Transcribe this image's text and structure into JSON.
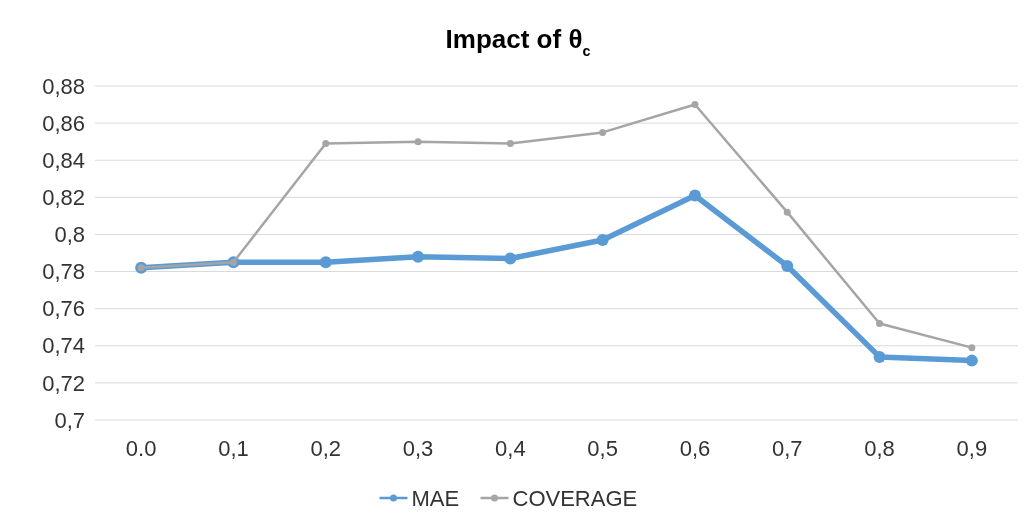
{
  "chart_data": {
    "type": "line",
    "title": "Impact of θ$_{c}$",
    "categories": [
      "0.0",
      "0,1",
      "0,2",
      "0,3",
      "0,4",
      "0,5",
      "0,6",
      "0,7",
      "0,8",
      "0,9"
    ],
    "series": [
      {
        "name": "MAE",
        "color": "#5b9bd5",
        "values": [
          0.782,
          0.785,
          0.785,
          0.788,
          0.787,
          0.797,
          0.821,
          0.783,
          0.734,
          0.732
        ]
      },
      {
        "name": "COVERAGE",
        "color": "#a5a5a5",
        "values": [
          0.782,
          0.785,
          0.849,
          0.85,
          0.849,
          0.855,
          0.87,
          0.812,
          0.752,
          0.739
        ]
      }
    ],
    "ylim": [
      0.7,
      0.88
    ],
    "yticks": [
      {
        "value": 0.7,
        "label": "0,7"
      },
      {
        "value": 0.72,
        "label": "0,72"
      },
      {
        "value": 0.74,
        "label": "0,74"
      },
      {
        "value": 0.76,
        "label": "0,76"
      },
      {
        "value": 0.78,
        "label": "0,78"
      },
      {
        "value": 0.8,
        "label": "0,8"
      },
      {
        "value": 0.82,
        "label": "0,82"
      },
      {
        "value": 0.84,
        "label": "0,84"
      },
      {
        "value": 0.86,
        "label": "0,86"
      },
      {
        "value": 0.88,
        "label": "0,88"
      }
    ],
    "grid": "y",
    "legend": "bottom",
    "marker": "circle",
    "line_style": "solid"
  }
}
